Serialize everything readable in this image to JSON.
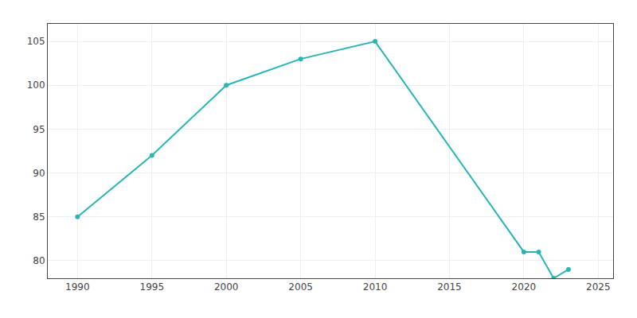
{
  "chart_data": {
    "type": "line",
    "x": [
      1990,
      1995,
      2000,
      2005,
      2010,
      2020,
      2021,
      2022,
      2023
    ],
    "values": [
      85,
      92,
      100,
      103,
      105,
      81,
      81,
      78,
      79
    ],
    "color": "#2ab5b5",
    "marker": "circle",
    "line_style": "solid",
    "xlim": [
      1988,
      2026
    ],
    "ylim": [
      78,
      107
    ],
    "xticks": [
      1990,
      1995,
      2000,
      2005,
      2010,
      2015,
      2020,
      2025
    ],
    "yticks": [
      80,
      85,
      90,
      95,
      100,
      105
    ],
    "grid": true
  }
}
